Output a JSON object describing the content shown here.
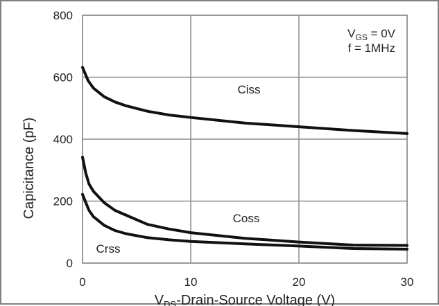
{
  "chart_data": {
    "type": "line",
    "title": "",
    "xlabel": {
      "main": "V",
      "sub": "DS",
      "rest": "-Drain-Source Voltage (V)"
    },
    "ylabel": "Capicitance (pF)",
    "xlim": [
      0,
      30
    ],
    "ylim": [
      0,
      800
    ],
    "xticks": [
      "0",
      "10",
      "20",
      "30"
    ],
    "yticks": [
      "0",
      "200",
      "400",
      "600",
      "800"
    ],
    "grid": true,
    "conditions": {
      "line1": {
        "main": "V",
        "sub": "GS",
        "rest": " = 0V"
      },
      "line2": "f = 1MHz"
    },
    "line_color": "#111111",
    "grid_color": "#8c8c8c",
    "series": [
      {
        "name": "Ciss",
        "x": [
          0,
          0.5,
          1,
          2,
          3,
          4,
          6,
          8,
          10,
          15,
          20,
          25,
          30
        ],
        "y": [
          632,
          590,
          565,
          537,
          520,
          508,
          490,
          478,
          470,
          452,
          440,
          428,
          418
        ]
      },
      {
        "name": "Coss",
        "x": [
          0,
          0.3,
          0.6,
          1,
          2,
          3,
          4,
          6,
          8,
          10,
          15,
          20,
          25,
          30
        ],
        "y": [
          342,
          290,
          255,
          232,
          195,
          170,
          155,
          125,
          110,
          98,
          80,
          68,
          58,
          57
        ]
      },
      {
        "name": "Crss",
        "x": [
          0,
          0.3,
          0.6,
          1,
          2,
          3,
          4,
          6,
          8,
          10,
          15,
          20,
          25,
          30
        ],
        "y": [
          222,
          195,
          170,
          150,
          122,
          105,
          95,
          82,
          75,
          70,
          62,
          55,
          47,
          45
        ]
      }
    ]
  }
}
